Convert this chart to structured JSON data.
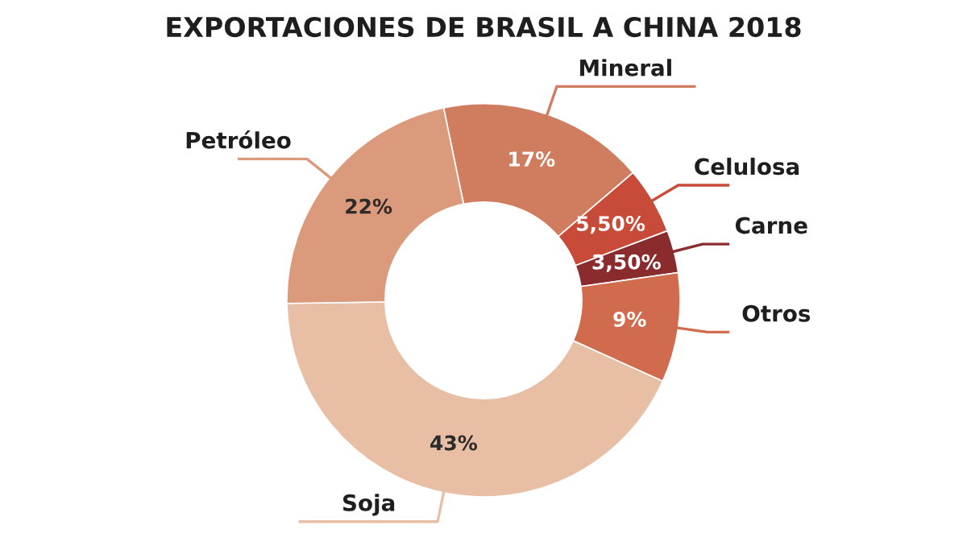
{
  "chart_data": {
    "type": "donut",
    "title": "EXPORTACIONES DE BRASIL A CHINA 2018",
    "categories": [
      "Mineral",
      "Celulosa",
      "Carne",
      "Otros",
      "Soja",
      "Petróleo"
    ],
    "values": [
      17,
      5.5,
      3.5,
      9,
      43,
      22
    ],
    "value_labels": [
      "17%",
      "5,50%",
      "3,50%",
      "9%",
      "43%",
      "22%"
    ],
    "colors": [
      "#d07d5f",
      "#c84a38",
      "#8a2b2e",
      "#d06b4e",
      "#e8bfa5",
      "#dc9a7d"
    ],
    "legend": false
  }
}
